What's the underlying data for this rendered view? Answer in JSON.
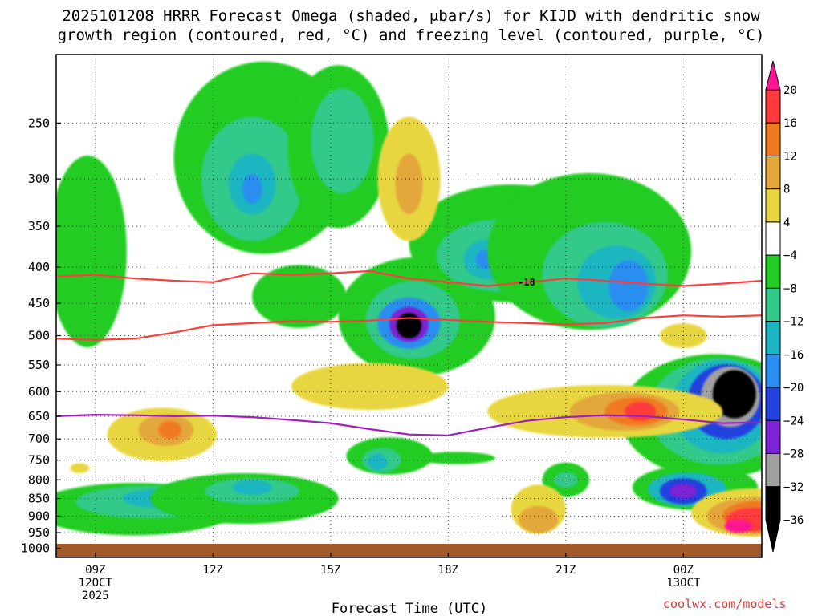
{
  "title_line1": "2025101208 HRRR Forecast Omega (shaded, μbar/s) for KIJD with dendritic snow",
  "title_line2": "growth region (contoured, red, °C) and freezing level (contoured, purple, °C)",
  "credit": "coolwx.com/models",
  "chart_data": {
    "type": "heatmap",
    "xlabel": "Forecast Time (UTC)",
    "ylabel": "",
    "x_ticks": [
      {
        "hour": 9,
        "lines": [
          "09Z",
          "12OCT",
          "2025"
        ]
      },
      {
        "hour": 12,
        "lines": [
          "12Z"
        ]
      },
      {
        "hour": 15,
        "lines": [
          "15Z"
        ]
      },
      {
        "hour": 18,
        "lines": [
          "18Z"
        ]
      },
      {
        "hour": 21,
        "lines": [
          "21Z"
        ]
      },
      {
        "hour": 24,
        "lines": [
          "00Z",
          "13OCT"
        ]
      }
    ],
    "xlim_hours": [
      8,
      26
    ],
    "y_levels_mb": [
      250,
      300,
      350,
      400,
      450,
      500,
      550,
      600,
      650,
      700,
      750,
      800,
      850,
      900,
      950,
      1000
    ],
    "ylim_mb": [
      200,
      1030
    ],
    "colorbar": {
      "labels": [
        "20",
        "16",
        "12",
        "8",
        "4",
        "−4",
        "−8",
        "−12",
        "−16",
        "−20",
        "−24",
        "−28",
        "−32",
        "−36"
      ],
      "colors": [
        "#ff1493",
        "#ff3b3b",
        "#f07a22",
        "#e3a73a",
        "#e8d640",
        "#ffffff",
        "#22cc22",
        "#33c98a",
        "#1cb5c2",
        "#2a8ef0",
        "#2342e0",
        "#7d22d4",
        "#a0a0a0",
        "#000000"
      ]
    },
    "series": [
      {
        "kind": "isotherm-dgz-upper",
        "label": "-18",
        "color": "#ff3b3b",
        "points": [
          [
            8,
            412
          ],
          [
            9,
            410
          ],
          [
            10,
            415
          ],
          [
            11,
            418
          ],
          [
            12,
            420
          ],
          [
            13,
            408
          ],
          [
            14,
            410
          ],
          [
            15,
            408
          ],
          [
            16,
            405
          ],
          [
            17,
            415
          ],
          [
            18,
            420
          ],
          [
            19,
            425
          ],
          [
            20,
            420
          ],
          [
            21,
            415
          ],
          [
            22,
            418
          ],
          [
            23,
            422
          ],
          [
            24,
            425
          ],
          [
            25,
            422
          ],
          [
            26,
            418
          ]
        ]
      },
      {
        "kind": "isotherm-dgz-lower",
        "color": "#ff3b3b",
        "points": [
          [
            8,
            505
          ],
          [
            9,
            507
          ],
          [
            10,
            505
          ],
          [
            11,
            495
          ],
          [
            12,
            483
          ],
          [
            13,
            480
          ],
          [
            14,
            477
          ],
          [
            15,
            478
          ],
          [
            16,
            476
          ],
          [
            17,
            472
          ],
          [
            18,
            475
          ],
          [
            19,
            478
          ],
          [
            20,
            480
          ],
          [
            21,
            482
          ],
          [
            22,
            480
          ],
          [
            23,
            472
          ],
          [
            24,
            468
          ],
          [
            25,
            470
          ],
          [
            26,
            468
          ]
        ]
      },
      {
        "kind": "freezing-level",
        "color": "#a01fc0",
        "points": [
          [
            8,
            650
          ],
          [
            9,
            647
          ],
          [
            10,
            648
          ],
          [
            11,
            650
          ],
          [
            12,
            649
          ],
          [
            13,
            652
          ],
          [
            14,
            658
          ],
          [
            15,
            665
          ],
          [
            16,
            678
          ],
          [
            17,
            690
          ],
          [
            18,
            692
          ],
          [
            19,
            675
          ],
          [
            20,
            660
          ],
          [
            21,
            652
          ],
          [
            22,
            648
          ],
          [
            23,
            650
          ],
          [
            24,
            657
          ],
          [
            25,
            665
          ],
          [
            26,
            663
          ]
        ]
      }
    ],
    "cells": [
      {
        "h": 10.0,
        "p": 880,
        "w": 2.6,
        "d": 150,
        "v": -8
      },
      {
        "h": 10.3,
        "p": 860,
        "w": 1.8,
        "d": 90,
        "v": -12
      },
      {
        "h": 10.6,
        "p": 850,
        "w": 0.9,
        "d": 50,
        "v": -16
      },
      {
        "h": 12.8,
        "p": 850,
        "w": 2.4,
        "d": 140,
        "v": -8
      },
      {
        "h": 13.0,
        "p": 830,
        "w": 1.2,
        "d": 70,
        "v": -12
      },
      {
        "h": 13.0,
        "p": 820,
        "w": 0.5,
        "d": 40,
        "v": -16
      },
      {
        "h": 8.8,
        "p": 380,
        "w": 1.0,
        "d": 230,
        "v": -8
      },
      {
        "h": 13.3,
        "p": 280,
        "w": 2.3,
        "d": 170,
        "v": -8
      },
      {
        "h": 13.0,
        "p": 300,
        "w": 1.3,
        "d": 120,
        "v": -12
      },
      {
        "h": 13.0,
        "p": 305,
        "w": 0.6,
        "d": 60,
        "v": -16
      },
      {
        "h": 13.0,
        "p": 310,
        "w": 0.25,
        "d": 30,
        "v": -20
      },
      {
        "h": 15.2,
        "p": 270,
        "w": 1.3,
        "d": 140,
        "v": -8
      },
      {
        "h": 15.3,
        "p": 265,
        "w": 0.8,
        "d": 90,
        "v": -12
      },
      {
        "h": 14.2,
        "p": 440,
        "w": 1.2,
        "d": 90,
        "v": -8
      },
      {
        "h": 17.2,
        "p": 470,
        "w": 2.0,
        "d": 180,
        "v": -8
      },
      {
        "h": 17.1,
        "p": 475,
        "w": 1.2,
        "d": 120,
        "v": -12
      },
      {
        "h": 17.0,
        "p": 480,
        "w": 0.8,
        "d": 80,
        "v": -20
      },
      {
        "h": 17.0,
        "p": 482,
        "w": 0.5,
        "d": 55,
        "v": -28
      },
      {
        "h": 17.0,
        "p": 484,
        "w": 0.32,
        "d": 40,
        "v": -36
      },
      {
        "h": 19.6,
        "p": 370,
        "w": 2.6,
        "d": 140,
        "v": -8
      },
      {
        "h": 19.3,
        "p": 385,
        "w": 1.6,
        "d": 90,
        "v": -12
      },
      {
        "h": 19.0,
        "p": 390,
        "w": 0.6,
        "d": 50,
        "v": -16
      },
      {
        "h": 19.0,
        "p": 390,
        "w": 0.3,
        "d": 25,
        "v": -20
      },
      {
        "h": 21.6,
        "p": 380,
        "w": 2.6,
        "d": 190,
        "v": -8
      },
      {
        "h": 22.0,
        "p": 410,
        "w": 1.6,
        "d": 140,
        "v": -12
      },
      {
        "h": 22.3,
        "p": 420,
        "w": 1.0,
        "d": 100,
        "v": -16
      },
      {
        "h": 22.6,
        "p": 425,
        "w": 0.5,
        "d": 70,
        "v": -20
      },
      {
        "h": 16.5,
        "p": 740,
        "w": 1.1,
        "d": 90,
        "v": -8
      },
      {
        "h": 16.3,
        "p": 750,
        "w": 0.5,
        "d": 60,
        "v": -12
      },
      {
        "h": 16.2,
        "p": 755,
        "w": 0.25,
        "d": 40,
        "v": -16
      },
      {
        "h": 18.2,
        "p": 745,
        "w": 1.0,
        "d": 30,
        "v": -8
      },
      {
        "h": 21.0,
        "p": 800,
        "w": 0.6,
        "d": 90,
        "v": -8
      },
      {
        "h": 21.0,
        "p": 800,
        "w": 0.3,
        "d": 40,
        "v": -12
      },
      {
        "h": 24.8,
        "p": 650,
        "w": 2.4,
        "d": 260,
        "v": -8
      },
      {
        "h": 24.9,
        "p": 640,
        "w": 1.8,
        "d": 220,
        "v": -12
      },
      {
        "h": 25.0,
        "p": 630,
        "w": 1.3,
        "d": 190,
        "v": -16
      },
      {
        "h": 25.1,
        "p": 620,
        "w": 1.0,
        "d": 150,
        "v": -24
      },
      {
        "h": 25.2,
        "p": 610,
        "w": 0.75,
        "d": 120,
        "v": -32
      },
      {
        "h": 25.3,
        "p": 605,
        "w": 0.55,
        "d": 95,
        "v": -36
      },
      {
        "h": 24.3,
        "p": 820,
        "w": 1.6,
        "d": 120,
        "v": -8
      },
      {
        "h": 24.1,
        "p": 825,
        "w": 1.0,
        "d": 90,
        "v": -16
      },
      {
        "h": 24.0,
        "p": 830,
        "w": 0.6,
        "d": 70,
        "v": -24
      },
      {
        "h": 24.0,
        "p": 830,
        "w": 0.35,
        "d": 40,
        "v": -28
      },
      {
        "h": 10.7,
        "p": 690,
        "w": 1.4,
        "d": 120,
        "v": 4
      },
      {
        "h": 10.8,
        "p": 680,
        "w": 0.7,
        "d": 70,
        "v": 8
      },
      {
        "h": 10.9,
        "p": 680,
        "w": 0.3,
        "d": 40,
        "v": 12
      },
      {
        "h": 16.0,
        "p": 590,
        "w": 2.0,
        "d": 90,
        "v": 4
      },
      {
        "h": 17.0,
        "p": 300,
        "w": 0.8,
        "d": 120,
        "v": 4
      },
      {
        "h": 17.0,
        "p": 305,
        "w": 0.35,
        "d": 60,
        "v": 8
      },
      {
        "h": 22.0,
        "p": 640,
        "w": 3.0,
        "d": 110,
        "v": 4
      },
      {
        "h": 22.5,
        "p": 640,
        "w": 1.4,
        "d": 80,
        "v": 8
      },
      {
        "h": 22.8,
        "p": 640,
        "w": 0.8,
        "d": 60,
        "v": 12
      },
      {
        "h": 22.9,
        "p": 640,
        "w": 0.4,
        "d": 40,
        "v": 16
      },
      {
        "h": 20.3,
        "p": 880,
        "w": 0.7,
        "d": 140,
        "v": 4
      },
      {
        "h": 20.3,
        "p": 910,
        "w": 0.5,
        "d": 80,
        "v": 8
      },
      {
        "h": 25.8,
        "p": 890,
        "w": 1.6,
        "d": 140,
        "v": 4
      },
      {
        "h": 25.8,
        "p": 900,
        "w": 1.2,
        "d": 110,
        "v": 8
      },
      {
        "h": 25.9,
        "p": 900,
        "w": 0.9,
        "d": 90,
        "v": 12
      },
      {
        "h": 25.8,
        "p": 910,
        "w": 0.7,
        "d": 70,
        "v": 16
      },
      {
        "h": 25.4,
        "p": 930,
        "w": 0.35,
        "d": 40,
        "v": 20
      },
      {
        "h": 8.6,
        "p": 770,
        "w": 0.25,
        "d": 25,
        "v": 4
      },
      {
        "h": 24.0,
        "p": 500,
        "w": 0.6,
        "d": 40,
        "v": 4
      }
    ],
    "surface_color": "#a05a2c"
  }
}
